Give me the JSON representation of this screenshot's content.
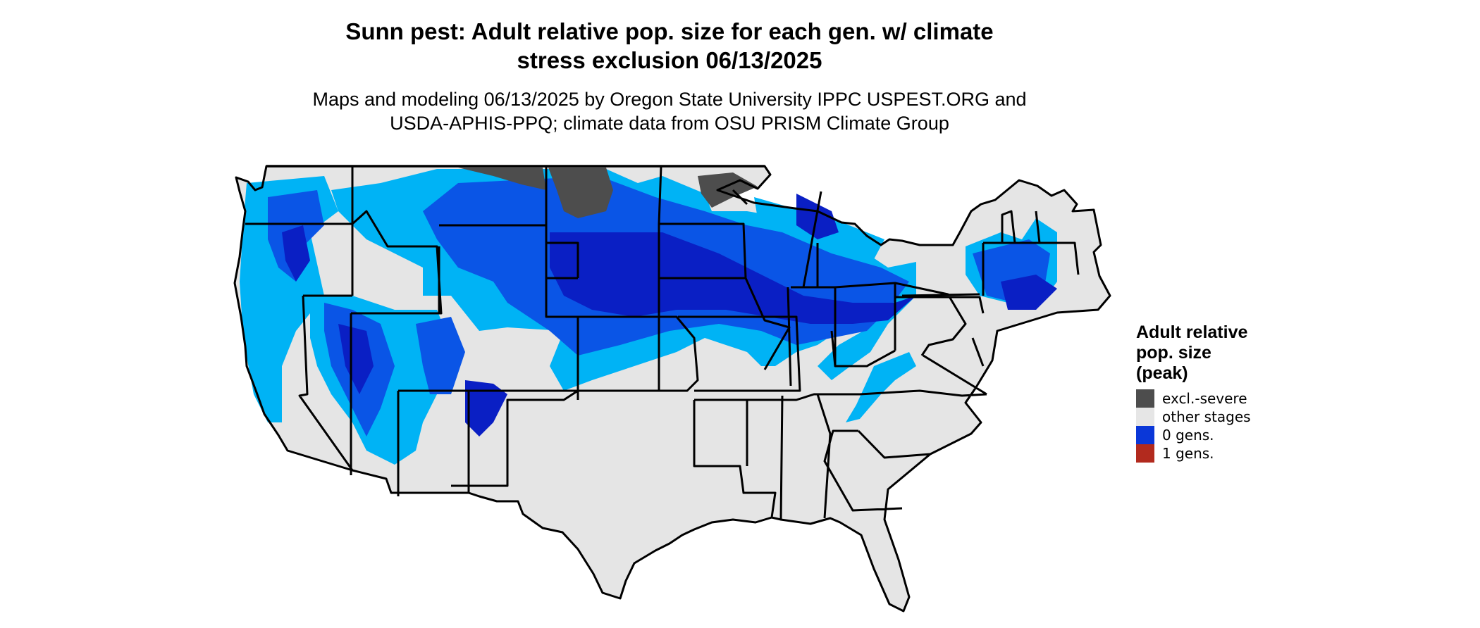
{
  "title": {
    "line1": "Sunn pest: Adult relative pop. size for each gen. w/ climate",
    "line2": "stress exclusion 06/13/2025"
  },
  "subtitle": {
    "line1": "Maps and modeling 06/13/2025 by Oregon State University IPPC USPEST.ORG and",
    "line2": "USDA-APHIS-PPQ; climate data from OSU PRISM Climate Group"
  },
  "legend": {
    "title_line1": "Adult relative",
    "title_line2": "pop. size",
    "title_line3": "(peak)",
    "items": [
      {
        "label": "excl.-severe",
        "color": "#4d4d4d"
      },
      {
        "label": "other stages",
        "color": "#e6e6e6"
      },
      {
        "label": "0 gens.",
        "color": "#0a37d8"
      },
      {
        "label": "1 gens.",
        "color": "#b22a1e"
      }
    ]
  },
  "map_colors": {
    "land": "#e5e5e5",
    "border": "#000000",
    "excluded": "#4d4d4d",
    "light_blue": "#00b3f5",
    "mid_blue": "#0a55e6",
    "dark_blue": "#0a1fc4"
  }
}
